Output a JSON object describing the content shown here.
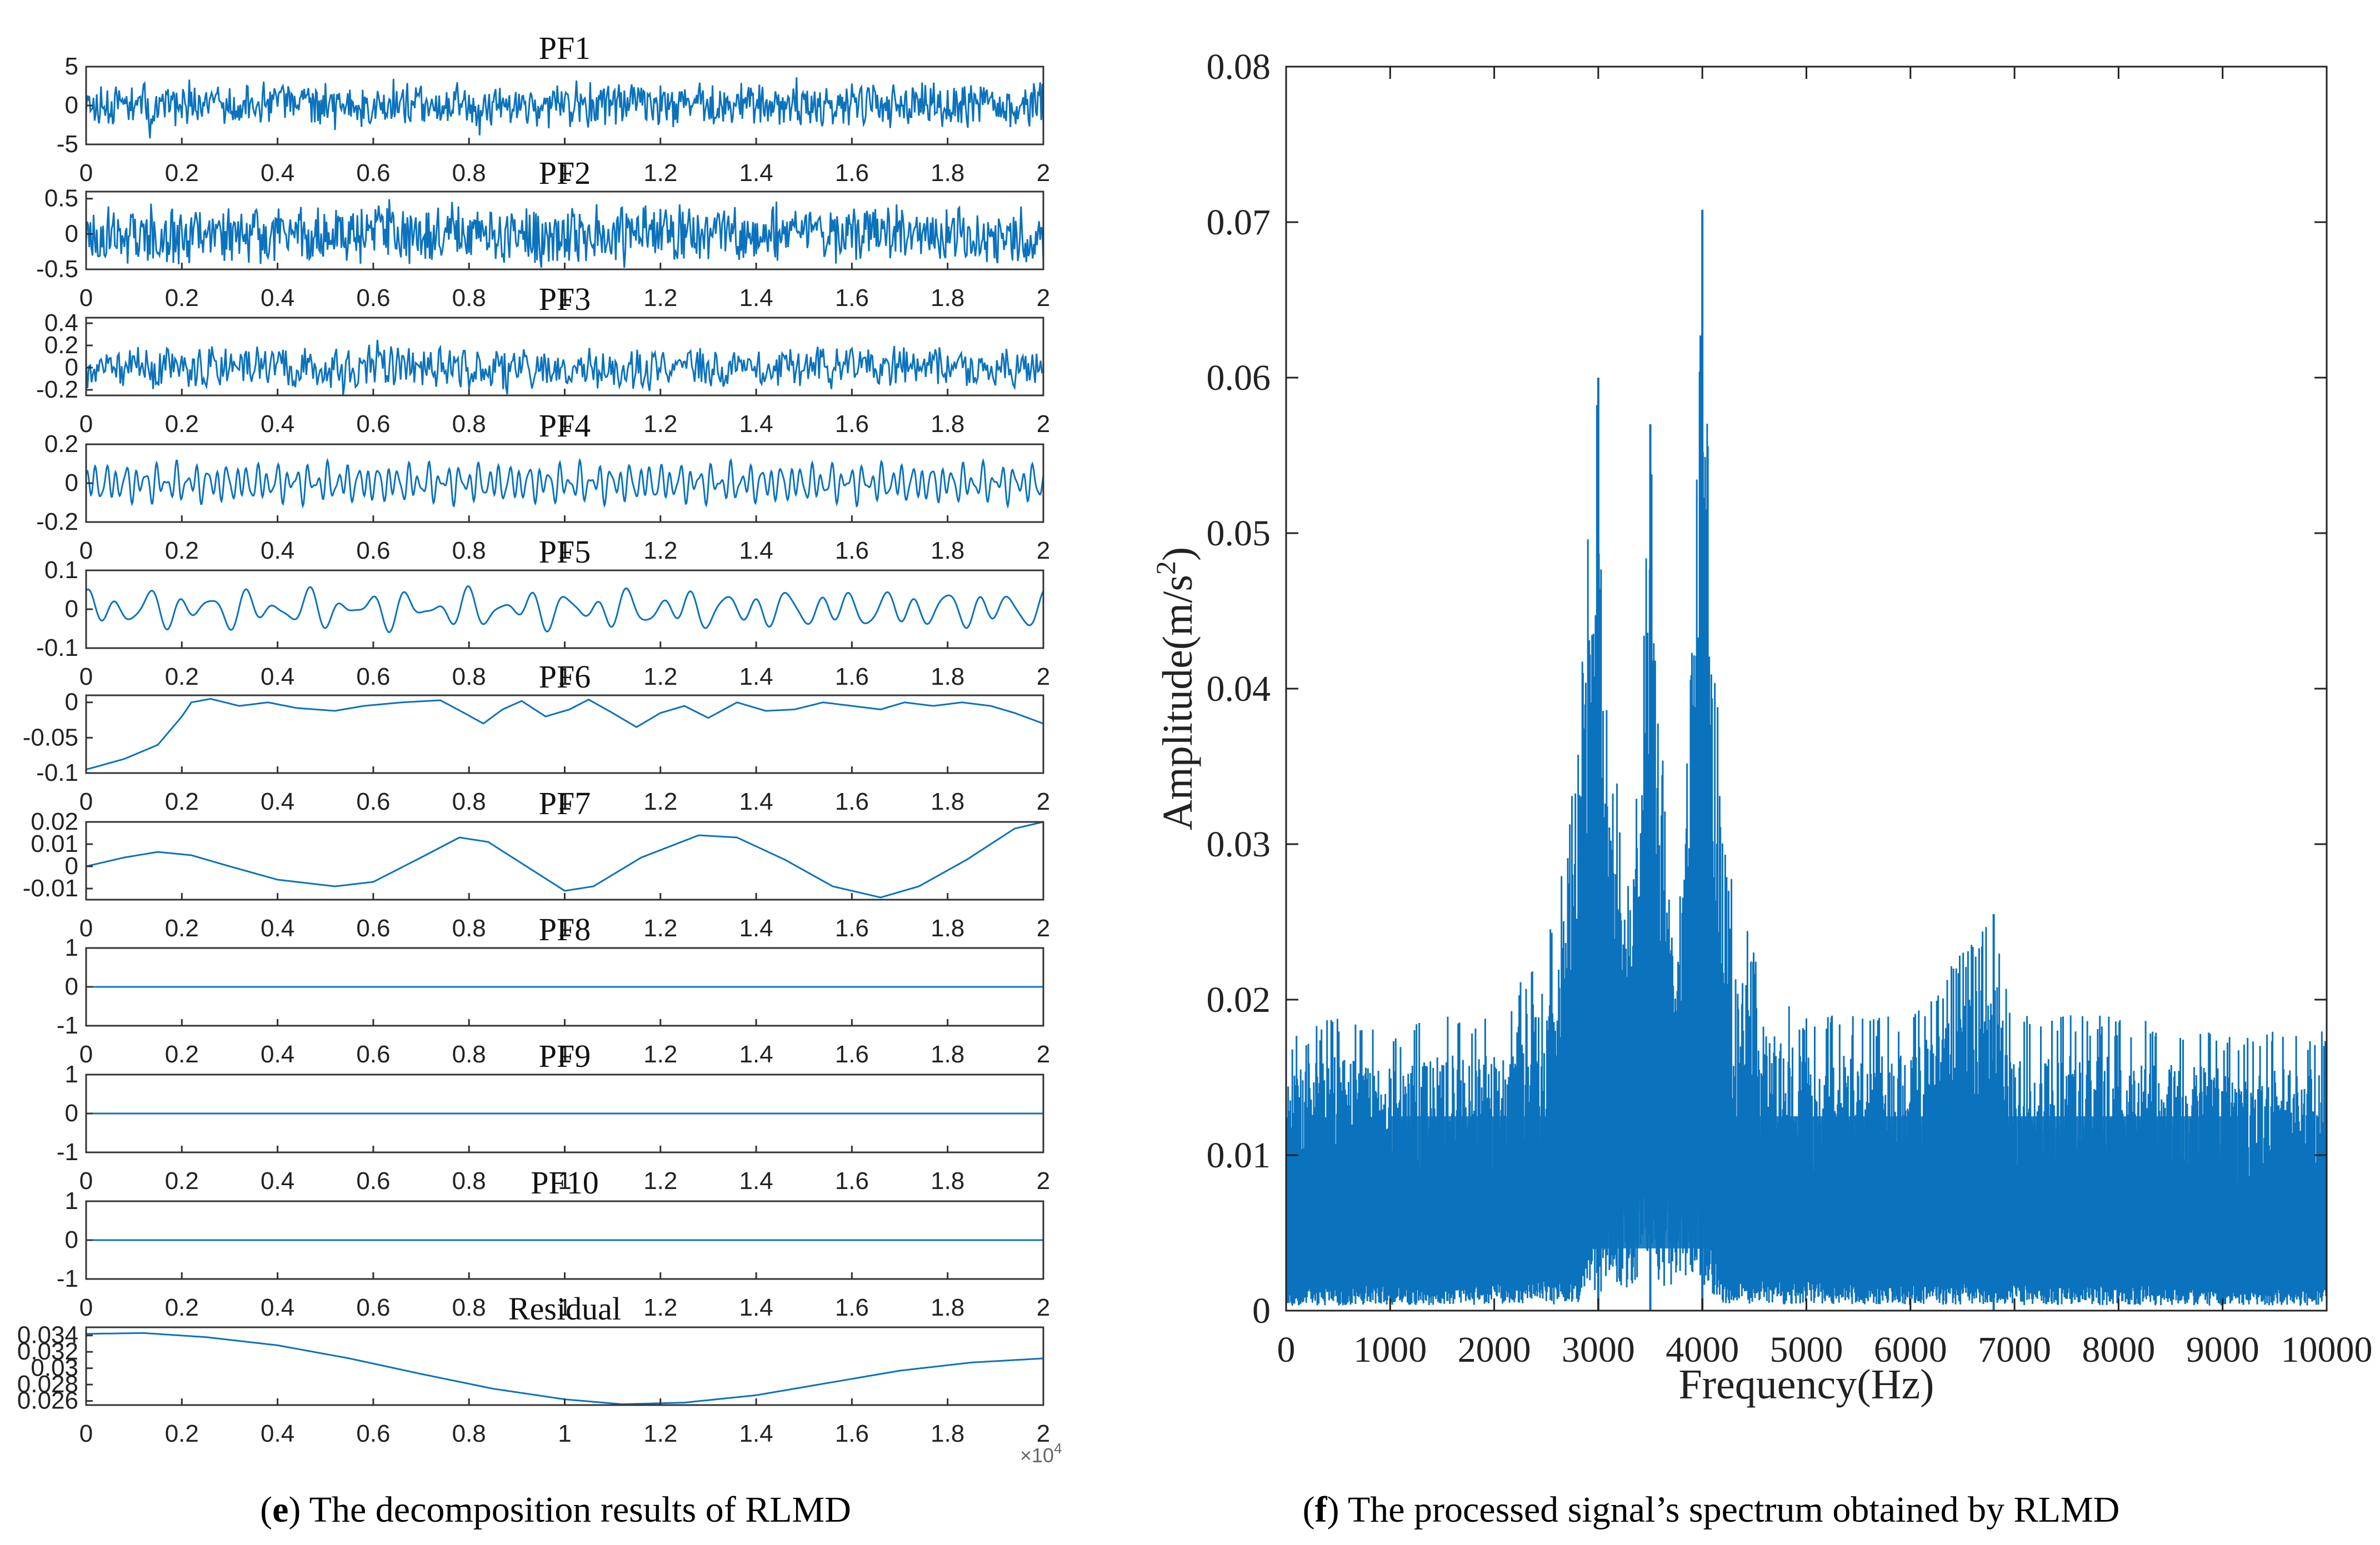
{
  "chart_data": [
    {
      "type": "line",
      "panel": "e",
      "caption_letter": "e",
      "caption_text": "The decomposition results of RLMD",
      "x_tick_labels": [
        "0",
        "0.2",
        "0.4",
        "0.6",
        "0.8",
        "1",
        "1.2",
        "1.4",
        "1.6",
        "1.8",
        "2"
      ],
      "x_multiplier": "×10",
      "x_multiplier_exp": "4",
      "xlim": [
        0,
        20000
      ],
      "subplots": [
        {
          "title": "PF1",
          "ylim": [
            -5,
            5
          ],
          "yticks": [
            "5",
            "0",
            "-5"
          ],
          "ytick_values": [
            5,
            0,
            -5
          ],
          "kind": "noise",
          "amplitude": 3.2,
          "points": 900,
          "seed": 11
        },
        {
          "title": "PF2",
          "ylim": [
            -0.5,
            0.6
          ],
          "yticks": [
            "0.5",
            "0",
            "-0.5"
          ],
          "ytick_values": [
            0.5,
            0,
            -0.5
          ],
          "kind": "noise",
          "amplitude": 0.45,
          "points": 900,
          "seed": 23
        },
        {
          "title": "PF3",
          "ylim": [
            -0.25,
            0.45
          ],
          "yticks": [
            "0.4",
            "0.2",
            "0",
            "-0.2"
          ],
          "ytick_values": [
            0.4,
            0.2,
            0,
            -0.2
          ],
          "kind": "noise",
          "amplitude": 0.22,
          "points": 700,
          "seed": 37
        },
        {
          "title": "PF4",
          "ylim": [
            -0.2,
            0.2
          ],
          "yticks": [
            "0.2",
            "0",
            "-0.2"
          ],
          "ytick_values": [
            0.2,
            0,
            -0.2
          ],
          "kind": "wave",
          "amplitude": 0.1,
          "freqs": [
            [
              95,
              0.6
            ],
            [
              140,
              0.3
            ],
            [
              57,
              0.3
            ]
          ],
          "points": 1400,
          "seed": 41
        },
        {
          "title": "PF5",
          "ylim": [
            -0.1,
            0.1
          ],
          "yticks": [
            "0.1",
            "0",
            "-0.1"
          ],
          "ytick_values": [
            0.1,
            0,
            -0.1
          ],
          "kind": "wave",
          "amplitude": 0.05,
          "freqs": [
            [
              30,
              0.6
            ],
            [
              18,
              0.35
            ],
            [
              43,
              0.25
            ]
          ],
          "points": 900,
          "seed": 53
        },
        {
          "title": "PF6",
          "ylim": [
            -0.1,
            0.01
          ],
          "yticks": [
            "0",
            "-0.05",
            "-0.1"
          ],
          "ytick_values": [
            0,
            -0.05,
            -0.1
          ],
          "kind": "points",
          "points_xy": [
            [
              0,
              -0.095
            ],
            [
              800,
              -0.08
            ],
            [
              1500,
              -0.06
            ],
            [
              2000,
              -0.02
            ],
            [
              2200,
              0.0
            ],
            [
              2600,
              0.005
            ],
            [
              3200,
              -0.005
            ],
            [
              3800,
              0.0
            ],
            [
              4400,
              -0.008
            ],
            [
              5200,
              -0.012
            ],
            [
              5800,
              -0.005
            ],
            [
              6600,
              0.0
            ],
            [
              7400,
              0.003
            ],
            [
              7900,
              -0.015
            ],
            [
              8300,
              -0.03
            ],
            [
              8700,
              -0.01
            ],
            [
              9100,
              0.002
            ],
            [
              9600,
              -0.02
            ],
            [
              10100,
              -0.01
            ],
            [
              10500,
              0.004
            ],
            [
              11000,
              -0.015
            ],
            [
              11500,
              -0.035
            ],
            [
              12000,
              -0.015
            ],
            [
              12500,
              -0.005
            ],
            [
              13000,
              -0.022
            ],
            [
              13600,
              0.0
            ],
            [
              14200,
              -0.012
            ],
            [
              14800,
              -0.01
            ],
            [
              15400,
              0.0
            ],
            [
              16000,
              -0.005
            ],
            [
              16600,
              -0.01
            ],
            [
              17100,
              0.0
            ],
            [
              17700,
              -0.005
            ],
            [
              18300,
              0.0
            ],
            [
              18900,
              -0.005
            ],
            [
              19400,
              -0.015
            ],
            [
              20000,
              -0.03
            ]
          ]
        },
        {
          "title": "PF7",
          "ylim": [
            -0.015,
            0.02
          ],
          "yticks": [
            "0.02",
            "0.01",
            "0",
            "-0.01"
          ],
          "ytick_values": [
            0.02,
            0.01,
            0,
            -0.01
          ],
          "kind": "points",
          "points_xy": [
            [
              0,
              0.0
            ],
            [
              800,
              0.004
            ],
            [
              1500,
              0.0065
            ],
            [
              2200,
              0.005
            ],
            [
              3000,
              0.0
            ],
            [
              4000,
              -0.006
            ],
            [
              5200,
              -0.009
            ],
            [
              6000,
              -0.007
            ],
            [
              7000,
              0.004
            ],
            [
              7800,
              0.013
            ],
            [
              8400,
              0.011
            ],
            [
              9200,
              0.0
            ],
            [
              10000,
              -0.011
            ],
            [
              10600,
              -0.009
            ],
            [
              11600,
              0.004
            ],
            [
              12800,
              0.014
            ],
            [
              13600,
              0.013
            ],
            [
              14600,
              0.003
            ],
            [
              15600,
              -0.009
            ],
            [
              16600,
              -0.014
            ],
            [
              17400,
              -0.009
            ],
            [
              18400,
              0.003
            ],
            [
              19400,
              0.017
            ],
            [
              20000,
              0.02
            ]
          ]
        },
        {
          "title": "PF8",
          "ylim": [
            -1,
            1
          ],
          "yticks": [
            "1",
            "0",
            "-1"
          ],
          "ytick_values": [
            1,
            0,
            -1
          ],
          "kind": "flat",
          "value": 0.0
        },
        {
          "title": "PF9",
          "ylim": [
            -1,
            1
          ],
          "yticks": [
            "1",
            "0",
            "-1"
          ],
          "ytick_values": [
            1,
            0,
            -1
          ],
          "kind": "flat",
          "value": 0.0
        },
        {
          "title": "PF10",
          "ylim": [
            -1,
            1
          ],
          "yticks": [
            "1",
            "0",
            "-1"
          ],
          "ytick_values": [
            1,
            0,
            -1
          ],
          "kind": "flat",
          "value": 0.0
        },
        {
          "title": "Residual",
          "ylim": [
            0.0255,
            0.035
          ],
          "yticks": [
            "0.034",
            "0.032",
            "0.03",
            "0.028",
            "0.026"
          ],
          "ytick_values": [
            0.034,
            0.032,
            0.03,
            0.028,
            0.026
          ],
          "kind": "points",
          "points_xy": [
            [
              0,
              0.0342
            ],
            [
              1200,
              0.0343
            ],
            [
              2500,
              0.0338
            ],
            [
              4000,
              0.0328
            ],
            [
              5500,
              0.0312
            ],
            [
              7000,
              0.0293
            ],
            [
              8500,
              0.0275
            ],
            [
              10000,
              0.0262
            ],
            [
              11200,
              0.0256
            ],
            [
              12500,
              0.0258
            ],
            [
              14000,
              0.0267
            ],
            [
              15500,
              0.0282
            ],
            [
              17000,
              0.0297
            ],
            [
              18500,
              0.0307
            ],
            [
              20000,
              0.0312
            ]
          ]
        }
      ]
    },
    {
      "type": "area",
      "panel": "f",
      "caption_letter": "f",
      "caption_text": "The processed signal’s spectrum obtained by RLMD",
      "xlabel": "Frequency(Hz)",
      "ylabel": "Amplitude(m/s",
      "ylabel_sup": "2",
      "ylabel_end": ")",
      "xlim": [
        0,
        10000
      ],
      "ylim": [
        0,
        0.08
      ],
      "x_ticks": [
        "0",
        "1000",
        "2000",
        "3000",
        "4000",
        "5000",
        "6000",
        "7000",
        "8000",
        "9000",
        "10000"
      ],
      "x_tick_values": [
        0,
        1000,
        2000,
        3000,
        4000,
        5000,
        6000,
        7000,
        8000,
        9000,
        10000
      ],
      "y_ticks": [
        "0",
        "0.01",
        "0.02",
        "0.03",
        "0.04",
        "0.05",
        "0.06",
        "0.07",
        "0.08"
      ],
      "y_tick_values": [
        0,
        0.01,
        0.02,
        0.03,
        0.04,
        0.05,
        0.06,
        0.07,
        0.08
      ],
      "envelope_hz_amp": [
        [
          0,
          0.018
        ],
        [
          500,
          0.019
        ],
        [
          1000,
          0.018
        ],
        [
          1500,
          0.019
        ],
        [
          2000,
          0.019
        ],
        [
          2300,
          0.022
        ],
        [
          2600,
          0.026
        ],
        [
          2800,
          0.036
        ],
        [
          2950,
          0.058
        ],
        [
          3000,
          0.06
        ],
        [
          3100,
          0.043
        ],
        [
          3250,
          0.026
        ],
        [
          3400,
          0.036
        ],
        [
          3500,
          0.057
        ],
        [
          3600,
          0.038
        ],
        [
          3750,
          0.023
        ],
        [
          3900,
          0.044
        ],
        [
          4000,
          0.0708
        ],
        [
          4100,
          0.045
        ],
        [
          4300,
          0.028
        ],
        [
          4600,
          0.021
        ],
        [
          5000,
          0.019
        ],
        [
          6000,
          0.019
        ],
        [
          6800,
          0.0255
        ],
        [
          7000,
          0.019
        ],
        [
          8000,
          0.019
        ],
        [
          9000,
          0.018
        ],
        [
          10000,
          0.018
        ]
      ],
      "floor_hz_amp": [
        [
          0,
          0.0015
        ],
        [
          2800,
          0.002
        ],
        [
          3000,
          0.006
        ],
        [
          3500,
          0.008
        ],
        [
          4000,
          0.007
        ],
        [
          4200,
          0.002
        ],
        [
          10000,
          0.0015
        ]
      ],
      "peaks": [
        {
          "x": 3000,
          "y": 0.06
        },
        {
          "x": 3500,
          "y": 0.057
        },
        {
          "x": 4000,
          "y": 0.0708
        },
        {
          "x": 6800,
          "y": 0.0255
        }
      ]
    }
  ]
}
